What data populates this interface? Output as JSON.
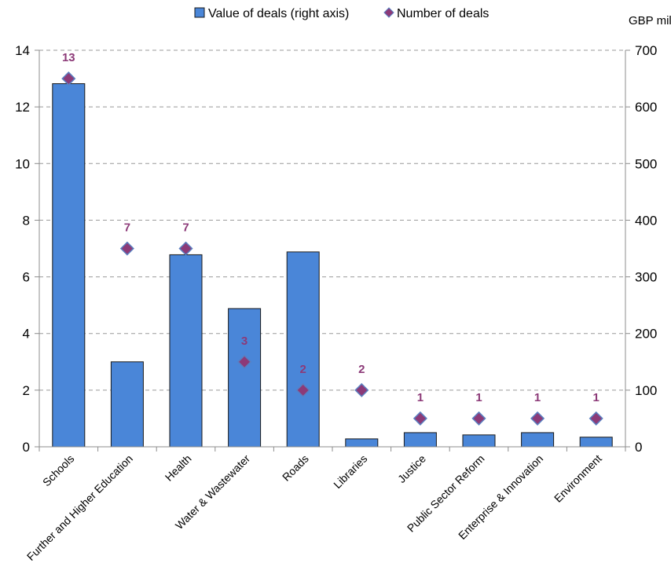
{
  "chart_data": {
    "type": "bar",
    "categories": [
      "Schools",
      "Further and Higher Education",
      "Health",
      "Water & Wastewater",
      "Roads",
      "Libraries",
      "Justice",
      "Public Sector Reform",
      "Enterprise & Innovation",
      "Environment"
    ],
    "series": [
      {
        "name": "Value of deals (right axis)",
        "type": "bar",
        "axis": "right",
        "color": "#4a86d8",
        "values": [
          641,
          150,
          339,
          244,
          344,
          14,
          25,
          21,
          25,
          17
        ]
      },
      {
        "name": "Number of deals",
        "type": "scatter",
        "axis": "left",
        "marker": "diamond",
        "color": "#8c3a78",
        "values": [
          13,
          7,
          7,
          3,
          2,
          2,
          1,
          1,
          1,
          1
        ],
        "data_labels": [
          "13",
          "7",
          "7",
          "3",
          "2",
          "2",
          "1",
          "1",
          "1",
          "1"
        ]
      }
    ],
    "y_left": {
      "ylim": [
        0,
        14
      ],
      "ticks": [
        0,
        2,
        4,
        6,
        8,
        10,
        12,
        14
      ]
    },
    "y_right": {
      "ylim": [
        0,
        700
      ],
      "ticks": [
        0,
        100,
        200,
        300,
        400,
        500,
        600,
        700
      ],
      "unit_label": "GBP million"
    },
    "grid": "horizontal-dashed",
    "legend_position": "top-center"
  }
}
